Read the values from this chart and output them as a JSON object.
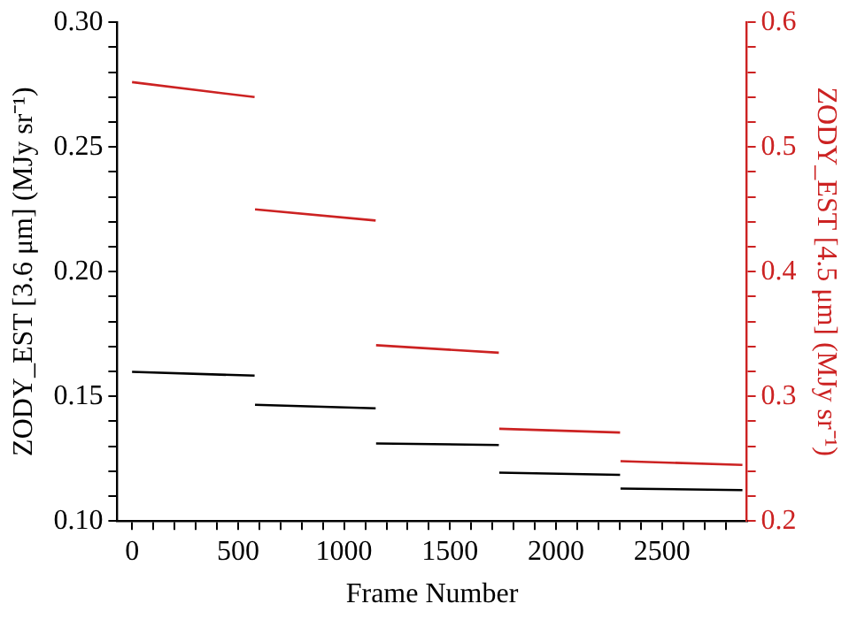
{
  "chart_data": {
    "type": "line",
    "xlabel": "Frame Number",
    "ylabel": "ZODY_EST [3.6 μm] (MJy sr⁻¹)",
    "y2label": "ZODY_EST [4.5 μm] (MJy sr⁻¹)",
    "xlim": [
      -70,
      2900
    ],
    "xticks": [
      0,
      {
        "value": 100,
        "label": null
      },
      {
        "value": 200,
        "label": null
      },
      {
        "value": 300,
        "label": null
      },
      {
        "value": 400,
        "label": null
      },
      500,
      {
        "value": 600,
        "label": null
      },
      {
        "value": 700,
        "label": null
      },
      {
        "value": 800,
        "label": null
      },
      {
        "value": 900,
        "label": null
      },
      1000,
      {
        "value": 1100,
        "label": null
      },
      {
        "value": 1200,
        "label": null
      },
      {
        "value": 1300,
        "label": null
      },
      {
        "value": 1400,
        "label": null
      },
      1500,
      {
        "value": 1600,
        "label": null
      },
      {
        "value": 1700,
        "label": null
      },
      {
        "value": 1800,
        "label": null
      },
      {
        "value": 1900,
        "label": null
      },
      2000,
      {
        "value": 2100,
        "label": null
      },
      {
        "value": 2200,
        "label": null
      },
      {
        "value": 2300,
        "label": null
      },
      {
        "value": 2400,
        "label": null
      },
      2500,
      {
        "value": 2600,
        "label": null
      },
      {
        "value": 2700,
        "label": null
      },
      {
        "value": 2800,
        "label": null
      }
    ],
    "ylim": [
      0.1,
      0.3
    ],
    "yticks": [
      {
        "value": 0.1,
        "label": "0.10"
      },
      {
        "value": 0.11,
        "label": null
      },
      {
        "value": 0.12,
        "label": null
      },
      {
        "value": 0.13,
        "label": null
      },
      {
        "value": 0.14,
        "label": null
      },
      0.15,
      {
        "value": 0.16,
        "label": null
      },
      {
        "value": 0.17,
        "label": null
      },
      {
        "value": 0.18,
        "label": null
      },
      {
        "value": 0.19,
        "label": null
      },
      {
        "value": 0.2,
        "label": "0.20"
      },
      {
        "value": 0.21,
        "label": null
      },
      {
        "value": 0.22,
        "label": null
      },
      {
        "value": 0.23,
        "label": null
      },
      {
        "value": 0.24,
        "label": null
      },
      0.25,
      {
        "value": 0.26,
        "label": null
      },
      {
        "value": 0.27,
        "label": null
      },
      {
        "value": 0.28,
        "label": null
      },
      {
        "value": 0.29,
        "label": null
      },
      {
        "value": 0.3,
        "label": "0.30"
      }
    ],
    "y2lim": [
      0.2,
      0.6
    ],
    "y2ticks": [
      0.2,
      {
        "value": 0.22,
        "label": null
      },
      {
        "value": 0.24,
        "label": null
      },
      {
        "value": 0.26,
        "label": null
      },
      {
        "value": 0.28,
        "label": null
      },
      0.3,
      {
        "value": 0.32,
        "label": null
      },
      {
        "value": 0.34,
        "label": null
      },
      {
        "value": 0.36,
        "label": null
      },
      {
        "value": 0.38,
        "label": null
      },
      0.4,
      {
        "value": 0.42,
        "label": null
      },
      {
        "value": 0.44,
        "label": null
      },
      {
        "value": 0.46,
        "label": null
      },
      {
        "value": 0.48,
        "label": null
      },
      0.5,
      {
        "value": 0.52,
        "label": null
      },
      {
        "value": 0.54,
        "label": null
      },
      {
        "value": 0.56,
        "label": null
      },
      {
        "value": 0.58,
        "label": null
      },
      0.6
    ],
    "grid": false,
    "legend": false,
    "marker": "none",
    "line_style": "solid",
    "series": [
      {
        "color": "#000000",
        "x": [
          0,
          578,
          579,
          580,
          1149,
          1150,
          1151,
          1730,
          1731,
          1732,
          2302,
          2303,
          2304,
          2879
        ],
        "values": [
          0.1598,
          0.1583,
          null,
          0.1466,
          0.1452,
          null,
          0.1311,
          0.1305,
          null,
          0.1194,
          0.1185,
          null,
          0.113,
          0.1124
        ]
      },
      {
        "color": "#cc2222",
        "axis": "y2",
        "x": [
          0,
          578,
          579,
          580,
          1149,
          1150,
          1151,
          1730,
          1731,
          1732,
          2302,
          2303,
          2304,
          2879
        ],
        "values": [
          0.552,
          0.54,
          null,
          0.45,
          0.441,
          null,
          0.341,
          0.335,
          null,
          0.274,
          0.271,
          null,
          0.248,
          0.245
        ]
      }
    ]
  }
}
